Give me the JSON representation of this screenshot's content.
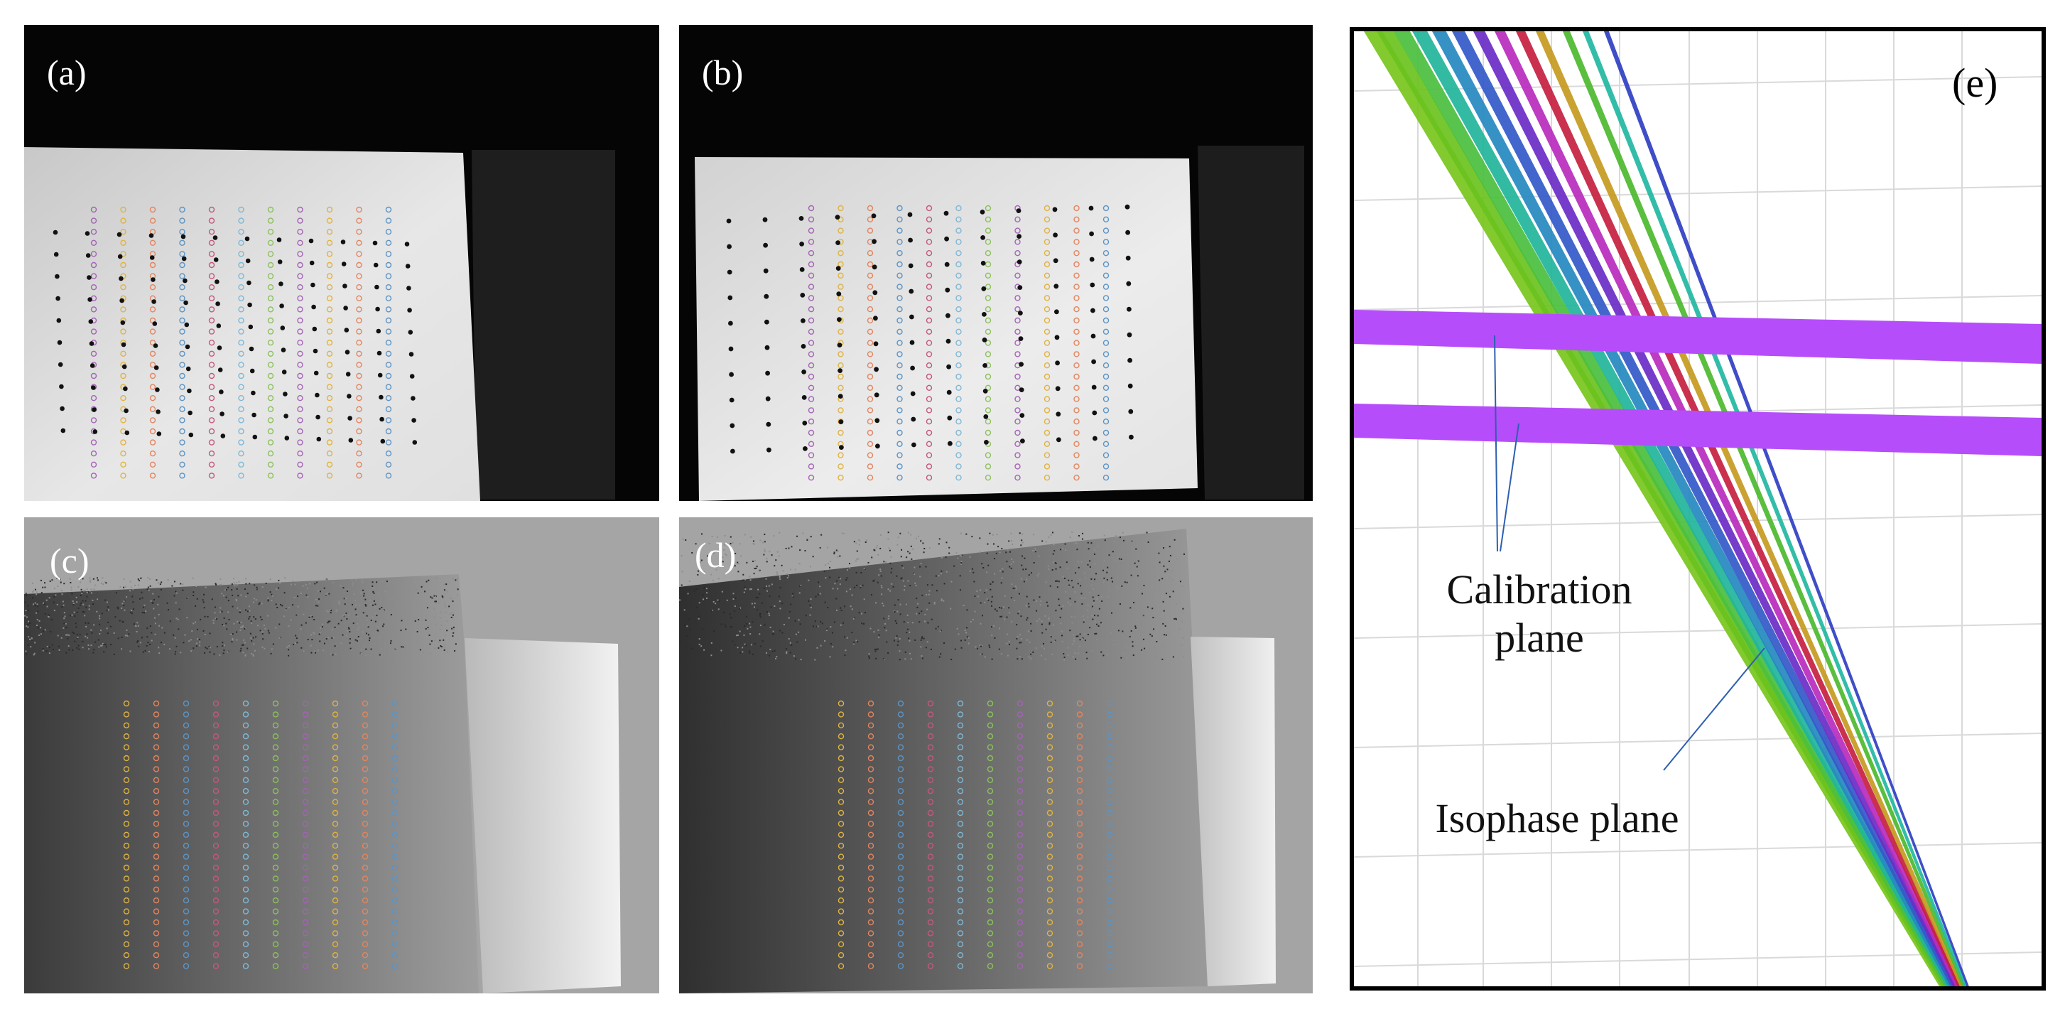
{
  "panels": {
    "a": {
      "label": "(a)"
    },
    "b": {
      "label": "(b)"
    },
    "c": {
      "label": "(c)"
    },
    "d": {
      "label": "(d)"
    },
    "e": {
      "label": "(e)"
    }
  },
  "annotations": {
    "calibration_plane": [
      "Calibration",
      "plane"
    ],
    "isophase_plane": "Isophase plane"
  },
  "colors": {
    "marker_palette": [
      "#a463b5",
      "#e0b341",
      "#e3855e",
      "#5b94c6",
      "#c3587e",
      "#7fb8d6",
      "#8cc15c",
      "#a463b5",
      "#e0b341",
      "#e3855e",
      "#5b94c6"
    ],
    "plane_fill": "#b64dfa",
    "ray_palette": [
      "#77c61c",
      "#6ac21e",
      "#4bbf3e",
      "#21b59a",
      "#2589bf",
      "#3359c8",
      "#6a2bc6",
      "#b72bbd",
      "#c62040",
      "#c59a21",
      "#4cb92e",
      "#21b7a2",
      "#2f3fc2"
    ]
  }
}
